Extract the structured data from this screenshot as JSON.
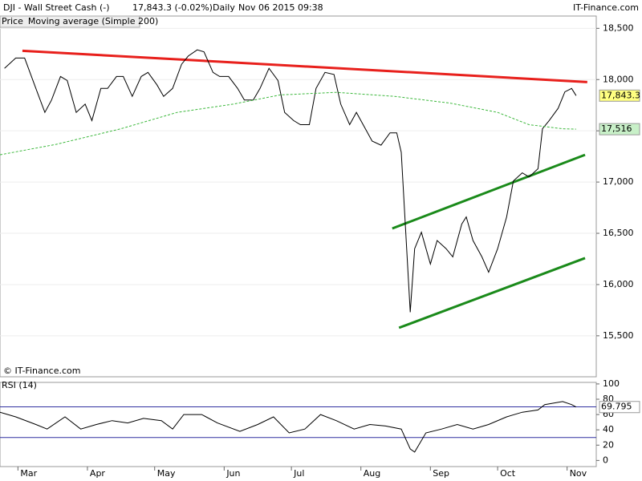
{
  "header": {
    "symbol": "DJI - Wall Street Cash (-)",
    "quote": "17,843.3 (-0.02%)",
    "period": "Daily",
    "timestamp": "Nov 06 2015 09:38",
    "brand": "IT-Finance.com",
    "copyright": "© IT-Finance.com"
  },
  "chart_data": [
    {
      "type": "line",
      "xlim": [
        -8,
        258
      ],
      "ylim": [
        15100,
        18620
      ],
      "grid": true,
      "yticks": [
        {
          "value": 15500,
          "label": "15,500"
        },
        {
          "value": 16000,
          "label": "16,000"
        },
        {
          "value": 16500,
          "label": "16,500"
        },
        {
          "value": 17000,
          "label": "17,000"
        },
        {
          "value": 17500,
          "label": "17,500"
        },
        {
          "value": 18000,
          "label": "18,000"
        },
        {
          "value": 18500,
          "label": "18,500"
        }
      ],
      "series": [
        {
          "name": "Price",
          "color": "#000000",
          "x": [
            -6,
            -1,
            3,
            8,
            12,
            15,
            19,
            22,
            26,
            30,
            33,
            37,
            40,
            44,
            47,
            51,
            55,
            58,
            62,
            65,
            69,
            73,
            76,
            80,
            83,
            87,
            90,
            94,
            98,
            101,
            105,
            108,
            112,
            116,
            119,
            123,
            126,
            130,
            133,
            137,
            141,
            144,
            148,
            151,
            155,
            158,
            162,
            166,
            169,
            171,
            173,
            175,
            177,
            180,
            184,
            187,
            191,
            194,
            198,
            200,
            203,
            207,
            210,
            214,
            218,
            221,
            225,
            228,
            232,
            234,
            237,
            241,
            244,
            247,
            249
          ],
          "values": [
            18110,
            18210,
            18210,
            17914,
            17680,
            17800,
            18030,
            17990,
            17680,
            17760,
            17600,
            17914,
            17914,
            18030,
            18030,
            17836,
            18030,
            18070,
            17950,
            17836,
            17914,
            18150,
            18230,
            18290,
            18270,
            18070,
            18030,
            18030,
            17914,
            17800,
            17800,
            17914,
            18110,
            17990,
            17680,
            17600,
            17560,
            17560,
            17914,
            18070,
            18050,
            17760,
            17560,
            17680,
            17520,
            17400,
            17360,
            17480,
            17480,
            17290,
            16510,
            15730,
            16350,
            16510,
            16200,
            16430,
            16350,
            16270,
            16590,
            16660,
            16430,
            16270,
            16120,
            16350,
            16660,
            17010,
            17090,
            17050,
            17130,
            17520,
            17600,
            17720,
            17880,
            17914,
            17843.3
          ],
          "last": {
            "value": 17843.3,
            "label": "17,843.3"
          },
          "last_color": "#ffff80"
        },
        {
          "name": "Moving average (Simple 200)",
          "color": "#3cb83c",
          "dashed": true,
          "x": [
            -8,
            17,
            46,
            71,
            96,
            117,
            142,
            168,
            193,
            214,
            228,
            243,
            249
          ],
          "values": [
            17266,
            17368,
            17520,
            17680,
            17760,
            17850,
            17875,
            17836,
            17770,
            17680,
            17560,
            17520,
            17516
          ],
          "last": {
            "value": 17516,
            "label": "17,516"
          },
          "last_color": "#c8f0c8"
        }
      ],
      "trendlines": [
        {
          "color": "#e8201c",
          "x": [
            2,
            254
          ],
          "values": [
            18281,
            17976
          ]
        },
        {
          "color": "#1a8a1a",
          "x": [
            167,
            253
          ],
          "values": [
            16547,
            17266
          ]
        },
        {
          "color": "#1a8a1a",
          "x": [
            170,
            253
          ],
          "values": [
            15578,
            16258
          ]
        }
      ]
    },
    {
      "type": "line",
      "xlim": [
        -8,
        258
      ],
      "ylim": [
        -8,
        102
      ],
      "yticks": [
        0,
        20,
        40,
        60,
        80,
        100
      ],
      "bands": [
        30,
        70
      ],
      "xticks": [
        {
          "value": 0,
          "label": "Mar"
        },
        {
          "value": 31,
          "label": "Apr"
        },
        {
          "value": 61,
          "label": "May"
        },
        {
          "value": 92,
          "label": "Jun"
        },
        {
          "value": 122,
          "label": "Jul"
        },
        {
          "value": 153,
          "label": "Aug"
        },
        {
          "value": 184,
          "label": "Sep"
        },
        {
          "value": 214,
          "label": "Oct"
        },
        {
          "value": 245,
          "label": "Nov"
        }
      ],
      "series": [
        {
          "name": "RSI (14)",
          "color": "#000000",
          "x": [
            -8,
            -1,
            8,
            13,
            21,
            28,
            35,
            42,
            49,
            56,
            64,
            69,
            74,
            82,
            89,
            99,
            107,
            114,
            121,
            128,
            135,
            142,
            150,
            157,
            164,
            171,
            175,
            177,
            182,
            189,
            196,
            203,
            210,
            218,
            225,
            232,
            235,
            243,
            247,
            249
          ],
          "values": [
            63,
            57,
            47,
            41,
            57,
            41,
            47,
            52,
            49,
            55,
            52,
            41,
            60,
            60,
            49,
            38,
            47,
            57,
            36,
            41,
            60,
            52,
            41,
            47,
            45,
            41,
            15,
            11,
            36,
            41,
            47,
            41,
            47,
            57,
            63,
            66,
            73,
            77,
            73,
            69.795
          ],
          "last": {
            "value": 69.795,
            "label": "69.795"
          },
          "last_color": "#ffffff"
        }
      ]
    }
  ]
}
